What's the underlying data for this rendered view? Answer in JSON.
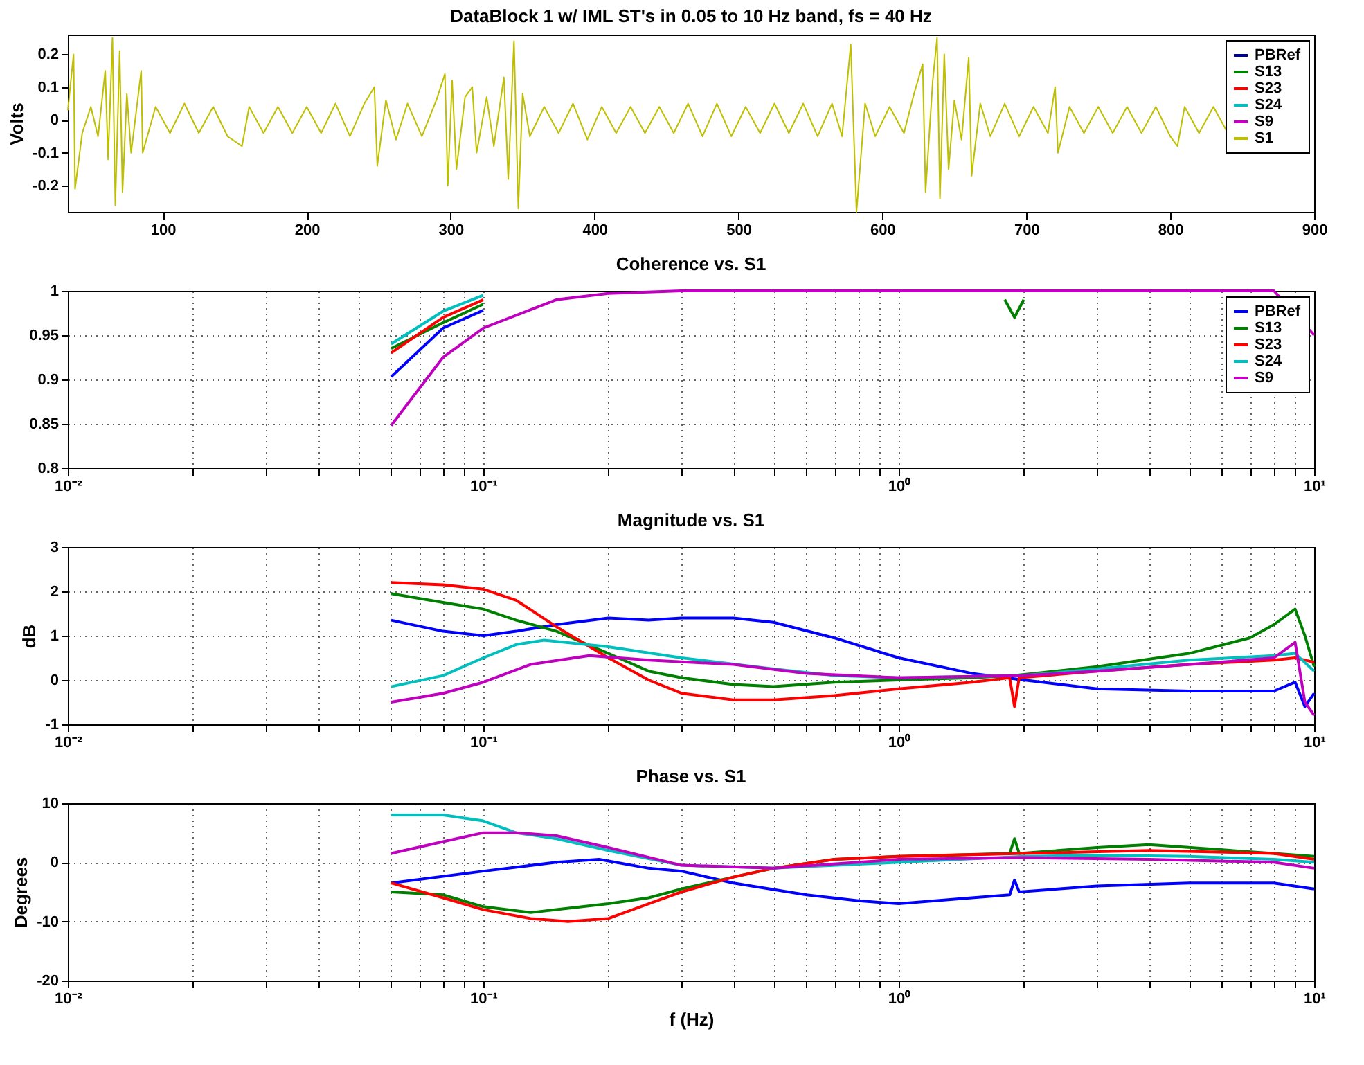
{
  "chart_data": [
    {
      "type": "line",
      "title": "DataBlock 1 w/ IML ST's in 0.05 to 10 Hz band, fs = 40 Hz",
      "ylabel": "Volts",
      "xlim": [
        34,
        900
      ],
      "xticks": [
        100,
        200,
        300,
        400,
        500,
        600,
        700,
        800,
        900
      ],
      "ylim": [
        -0.28,
        0.26
      ],
      "yticks": [
        -0.2,
        -0.1,
        0,
        0.1,
        0.2
      ],
      "grid": false,
      "legend": "top right",
      "series": [
        {
          "name": "PBRef",
          "color": "#00008b"
        },
        {
          "name": "S13",
          "color": "#008000"
        },
        {
          "name": "S23",
          "color": "#ff0000"
        },
        {
          "name": "S24",
          "color": "#00bfbf"
        },
        {
          "name": "S9",
          "color": "#bf00bf"
        },
        {
          "name": "S1",
          "color": "#bfbf00",
          "x": [
            34,
            38,
            39,
            44,
            50,
            55,
            60,
            62,
            65,
            67,
            70,
            72,
            75,
            78,
            85,
            86,
            95,
            105,
            115,
            125,
            135,
            145,
            155,
            160,
            170,
            180,
            190,
            200,
            210,
            220,
            230,
            240,
            247,
            249,
            255,
            262,
            270,
            280,
            290,
            296,
            298,
            301,
            304,
            310,
            315,
            318,
            325,
            330,
            337,
            340,
            344,
            347,
            350,
            355,
            365,
            375,
            385,
            395,
            405,
            415,
            425,
            435,
            445,
            455,
            465,
            475,
            485,
            495,
            505,
            515,
            525,
            535,
            545,
            555,
            565,
            572,
            578,
            582,
            588,
            595,
            605,
            615,
            622,
            628,
            630,
            635,
            638,
            640,
            643,
            646,
            650,
            655,
            660,
            662,
            668,
            675,
            685,
            695,
            705,
            715,
            720,
            722,
            730,
            740,
            750,
            760,
            770,
            780,
            790,
            800,
            805,
            810,
            820,
            830,
            840
          ],
          "values": [
            0.03,
            0.2,
            -0.21,
            -0.04,
            0.04,
            -0.05,
            0.15,
            -0.12,
            0.25,
            -0.26,
            0.21,
            -0.22,
            0.08,
            -0.1,
            0.15,
            -0.1,
            0.04,
            -0.04,
            0.05,
            -0.04,
            0.04,
            -0.05,
            -0.08,
            0.04,
            -0.04,
            0.04,
            -0.04,
            0.04,
            -0.04,
            0.05,
            -0.05,
            0.05,
            0.1,
            -0.14,
            0.06,
            -0.06,
            0.05,
            -0.05,
            0.06,
            0.14,
            -0.2,
            0.12,
            -0.15,
            0.07,
            0.1,
            -0.1,
            0.07,
            -0.08,
            0.13,
            -0.18,
            0.24,
            -0.27,
            0.08,
            -0.05,
            0.04,
            -0.04,
            0.05,
            -0.06,
            0.04,
            -0.04,
            0.04,
            -0.04,
            0.04,
            -0.04,
            0.05,
            -0.05,
            0.05,
            -0.05,
            0.04,
            -0.04,
            0.05,
            -0.04,
            0.05,
            -0.05,
            0.05,
            -0.05,
            0.23,
            -0.28,
            0.05,
            -0.05,
            0.04,
            -0.04,
            0.08,
            0.17,
            -0.22,
            0.12,
            0.25,
            -0.24,
            0.2,
            -0.15,
            0.06,
            -0.06,
            0.19,
            -0.17,
            0.05,
            -0.05,
            0.05,
            -0.05,
            0.04,
            -0.04,
            0.1,
            -0.1,
            0.04,
            -0.04,
            0.04,
            -0.04,
            0.04,
            -0.04,
            0.04,
            -0.05,
            -0.08,
            0.04,
            -0.04,
            0.04,
            -0.04
          ]
        }
      ]
    },
    {
      "type": "line",
      "title": "Coherence vs. S1",
      "log": "x",
      "xlim": [
        0.01,
        10
      ],
      "xticks": [
        {
          "value": 0.01,
          "label": "10⁻²"
        },
        {
          "value": 0.02,
          "label": null
        },
        {
          "value": 0.03,
          "label": null
        },
        {
          "value": 0.04,
          "label": null
        },
        {
          "value": 0.05,
          "label": null
        },
        {
          "value": 0.06,
          "label": null
        },
        {
          "value": 0.07,
          "label": null
        },
        {
          "value": 0.08,
          "label": null
        },
        {
          "value": 0.09,
          "label": null
        },
        {
          "value": 0.1,
          "label": "10⁻¹"
        },
        {
          "value": 0.2,
          "label": null
        },
        {
          "value": 0.3,
          "label": null
        },
        {
          "value": 0.4,
          "label": null
        },
        {
          "value": 0.5,
          "label": null
        },
        {
          "value": 0.6,
          "label": null
        },
        {
          "value": 0.7,
          "label": null
        },
        {
          "value": 0.8,
          "label": null
        },
        {
          "value": 0.9,
          "label": null
        },
        {
          "value": 1,
          "label": "10⁰"
        },
        {
          "value": 2,
          "label": null
        },
        {
          "value": 3,
          "label": null
        },
        {
          "value": 4,
          "label": null
        },
        {
          "value": 5,
          "label": null
        },
        {
          "value": 6,
          "label": null
        },
        {
          "value": 7,
          "label": null
        },
        {
          "value": 8,
          "label": null
        },
        {
          "value": 9,
          "label": null
        },
        {
          "value": 10,
          "label": "10¹"
        }
      ],
      "ylim": [
        0.8,
        1
      ],
      "yticks": [
        0.8,
        0.85,
        0.9,
        0.95,
        1
      ],
      "grid": true,
      "legend": "top right",
      "series": [
        {
          "name": "PBRef",
          "color": "#0000ff",
          "x": [
            0.06,
            0.08,
            0.1
          ],
          "values": [
            0.903,
            0.958,
            0.978
          ]
        },
        {
          "name": "S13",
          "color": "#008000",
          "x": [
            0.06,
            0.08,
            0.1,
            0.5,
            1.8,
            1.9,
            2
          ],
          "values": [
            0.935,
            0.964,
            0.985,
            null,
            0.99,
            0.97,
            0.99
          ]
        },
        {
          "name": "S23",
          "color": "#ff0000",
          "x": [
            0.06,
            0.08,
            0.1
          ],
          "values": [
            0.93,
            0.97,
            0.99
          ]
        },
        {
          "name": "S24",
          "color": "#00bfbf",
          "x": [
            0.06,
            0.08,
            0.1
          ],
          "values": [
            0.94,
            0.977,
            0.995
          ]
        },
        {
          "name": "S9",
          "color": "#bf00bf",
          "x": [
            0.06,
            0.08,
            0.1,
            0.15,
            0.2,
            0.3,
            1,
            3,
            8,
            10
          ],
          "values": [
            0.848,
            0.925,
            0.958,
            0.99,
            0.997,
            1,
            1,
            1,
            1,
            0.95
          ]
        }
      ]
    },
    {
      "type": "line",
      "title": "Magnitude vs. S1",
      "ylabel": "dB",
      "log": "x",
      "xlim": [
        0.01,
        10
      ],
      "xticks": [
        {
          "value": 0.01,
          "label": "10⁻²"
        },
        {
          "value": 0.02,
          "label": null
        },
        {
          "value": 0.03,
          "label": null
        },
        {
          "value": 0.04,
          "label": null
        },
        {
          "value": 0.05,
          "label": null
        },
        {
          "value": 0.06,
          "label": null
        },
        {
          "value": 0.07,
          "label": null
        },
        {
          "value": 0.08,
          "label": null
        },
        {
          "value": 0.09,
          "label": null
        },
        {
          "value": 0.1,
          "label": "10⁻¹"
        },
        {
          "value": 0.2,
          "label": null
        },
        {
          "value": 0.3,
          "label": null
        },
        {
          "value": 0.4,
          "label": null
        },
        {
          "value": 0.5,
          "label": null
        },
        {
          "value": 0.6,
          "label": null
        },
        {
          "value": 0.7,
          "label": null
        },
        {
          "value": 0.8,
          "label": null
        },
        {
          "value": 0.9,
          "label": null
        },
        {
          "value": 1,
          "label": "10⁰"
        },
        {
          "value": 2,
          "label": null
        },
        {
          "value": 3,
          "label": null
        },
        {
          "value": 4,
          "label": null
        },
        {
          "value": 5,
          "label": null
        },
        {
          "value": 6,
          "label": null
        },
        {
          "value": 7,
          "label": null
        },
        {
          "value": 8,
          "label": null
        },
        {
          "value": 9,
          "label": null
        },
        {
          "value": 10,
          "label": "10¹"
        }
      ],
      "ylim": [
        -1,
        3
      ],
      "yticks": [
        -1,
        0,
        1,
        2,
        3
      ],
      "grid": true,
      "series": [
        {
          "color": "#0000ff",
          "x": [
            0.06,
            0.08,
            0.1,
            0.12,
            0.15,
            0.2,
            0.25,
            0.3,
            0.4,
            0.5,
            0.7,
            1,
            1.5,
            2,
            3,
            5,
            8,
            9,
            9.5,
            10
          ],
          "values": [
            1.35,
            1.1,
            1.0,
            1.1,
            1.25,
            1.4,
            1.35,
            1.4,
            1.4,
            1.3,
            0.95,
            0.5,
            0.15,
            0,
            -0.2,
            -0.25,
            -0.25,
            -0.05,
            -0.6,
            -0.3
          ]
        },
        {
          "color": "#008000",
          "x": [
            0.06,
            0.08,
            0.1,
            0.12,
            0.15,
            0.2,
            0.25,
            0.3,
            0.4,
            0.5,
            0.7,
            1,
            1.5,
            1.9,
            3,
            5,
            7,
            8,
            9,
            9.5,
            10
          ],
          "values": [
            1.95,
            1.75,
            1.6,
            1.35,
            1.1,
            0.6,
            0.2,
            0.05,
            -0.1,
            -0.15,
            -0.05,
            0,
            0.05,
            0.1,
            0.3,
            0.6,
            0.95,
            1.25,
            1.6,
            1.0,
            0.3
          ]
        },
        {
          "color": "#ff0000",
          "x": [
            0.06,
            0.08,
            0.1,
            0.12,
            0.15,
            0.2,
            0.25,
            0.3,
            0.4,
            0.5,
            0.7,
            1,
            1.5,
            1.85,
            1.9,
            1.95,
            3,
            5,
            8,
            9,
            10
          ],
          "values": [
            2.2,
            2.15,
            2.05,
            1.8,
            1.2,
            0.5,
            0,
            -0.3,
            -0.45,
            -0.45,
            -0.35,
            -0.2,
            -0.05,
            0.05,
            -0.6,
            0.05,
            0.2,
            0.35,
            0.45,
            0.5,
            0.4
          ]
        },
        {
          "color": "#00bfbf",
          "x": [
            0.06,
            0.08,
            0.1,
            0.12,
            0.14,
            0.2,
            0.3,
            0.5,
            0.7,
            1,
            2,
            3,
            5,
            8,
            9,
            10
          ],
          "values": [
            -0.15,
            0.1,
            0.5,
            0.8,
            0.9,
            0.75,
            0.5,
            0.25,
            0.1,
            0.05,
            0.1,
            0.25,
            0.45,
            0.55,
            0.6,
            0.2
          ]
        },
        {
          "color": "#bf00bf",
          "x": [
            0.06,
            0.08,
            0.1,
            0.13,
            0.18,
            0.25,
            0.4,
            0.6,
            1,
            2,
            3,
            5,
            8,
            9,
            9.5,
            10
          ],
          "values": [
            -0.5,
            -0.3,
            -0.05,
            0.35,
            0.55,
            0.45,
            0.35,
            0.15,
            0.05,
            0.1,
            0.2,
            0.35,
            0.5,
            0.85,
            -0.5,
            -0.8
          ]
        }
      ]
    },
    {
      "type": "line",
      "title": "Phase vs. S1",
      "xlabel": "f (Hz)",
      "ylabel": "Degrees",
      "log": "x",
      "xlim": [
        0.01,
        10
      ],
      "xticks": [
        {
          "value": 0.01,
          "label": "10⁻²"
        },
        {
          "value": 0.02,
          "label": null
        },
        {
          "value": 0.03,
          "label": null
        },
        {
          "value": 0.04,
          "label": null
        },
        {
          "value": 0.05,
          "label": null
        },
        {
          "value": 0.06,
          "label": null
        },
        {
          "value": 0.07,
          "label": null
        },
        {
          "value": 0.08,
          "label": null
        },
        {
          "value": 0.09,
          "label": null
        },
        {
          "value": 0.1,
          "label": "10⁻¹"
        },
        {
          "value": 0.2,
          "label": null
        },
        {
          "value": 0.3,
          "label": null
        },
        {
          "value": 0.4,
          "label": null
        },
        {
          "value": 0.5,
          "label": null
        },
        {
          "value": 0.6,
          "label": null
        },
        {
          "value": 0.7,
          "label": null
        },
        {
          "value": 0.8,
          "label": null
        },
        {
          "value": 0.9,
          "label": null
        },
        {
          "value": 1,
          "label": "10⁰"
        },
        {
          "value": 2,
          "label": null
        },
        {
          "value": 3,
          "label": null
        },
        {
          "value": 4,
          "label": null
        },
        {
          "value": 5,
          "label": null
        },
        {
          "value": 6,
          "label": null
        },
        {
          "value": 7,
          "label": null
        },
        {
          "value": 8,
          "label": null
        },
        {
          "value": 9,
          "label": null
        },
        {
          "value": 10,
          "label": "10¹"
        }
      ],
      "ylim": [
        -20,
        10
      ],
      "yticks": [
        -20,
        -10,
        0,
        10
      ],
      "grid": true,
      "series": [
        {
          "color": "#0000ff",
          "x": [
            0.06,
            0.1,
            0.15,
            0.19,
            0.25,
            0.3,
            0.4,
            0.6,
            0.8,
            1,
            1.5,
            1.85,
            1.9,
            1.95,
            3,
            5,
            8,
            10
          ],
          "values": [
            -3.5,
            -1.5,
            0,
            0.5,
            -1,
            -1.5,
            -3.5,
            -5.5,
            -6.5,
            -7,
            -6,
            -5.5,
            -3,
            -5,
            -4,
            -3.5,
            -3.5,
            -4.5
          ]
        },
        {
          "color": "#008000",
          "x": [
            0.06,
            0.08,
            0.1,
            0.13,
            0.15,
            0.2,
            0.25,
            0.3,
            0.4,
            0.5,
            0.7,
            1,
            1.85,
            1.9,
            1.95,
            3,
            4,
            8,
            10
          ],
          "values": [
            -5,
            -5.5,
            -7.5,
            -8.5,
            -8,
            -7,
            -6,
            -4.5,
            -2.5,
            -1,
            0.5,
            1,
            1.5,
            4,
            1.5,
            2.5,
            3,
            1.5,
            1
          ]
        },
        {
          "color": "#ff0000",
          "x": [
            0.06,
            0.08,
            0.1,
            0.13,
            0.16,
            0.2,
            0.25,
            0.3,
            0.4,
            0.5,
            0.7,
            1,
            2,
            4,
            8,
            10
          ],
          "values": [
            -3.5,
            -6,
            -8,
            -9.5,
            -10,
            -9.5,
            -7,
            -5,
            -2.5,
            -1,
            0.5,
            1,
            1.5,
            2,
            1.5,
            0.5
          ]
        },
        {
          "color": "#00bfbf",
          "x": [
            0.06,
            0.08,
            0.1,
            0.12,
            0.15,
            0.2,
            0.3,
            0.5,
            1,
            2,
            3,
            5,
            8,
            10
          ],
          "values": [
            8,
            8,
            7,
            5,
            4,
            2,
            -0.5,
            -1,
            0,
            1,
            1.2,
            1,
            0.5,
            0
          ]
        },
        {
          "color": "#bf00bf",
          "x": [
            0.06,
            0.08,
            0.1,
            0.12,
            0.15,
            0.2,
            0.3,
            0.5,
            1,
            2,
            4,
            8,
            10
          ],
          "values": [
            1.5,
            3.5,
            5,
            5,
            4.5,
            2.5,
            -0.5,
            -1,
            0.5,
            0.8,
            0.5,
            0,
            -1
          ]
        }
      ]
    }
  ]
}
